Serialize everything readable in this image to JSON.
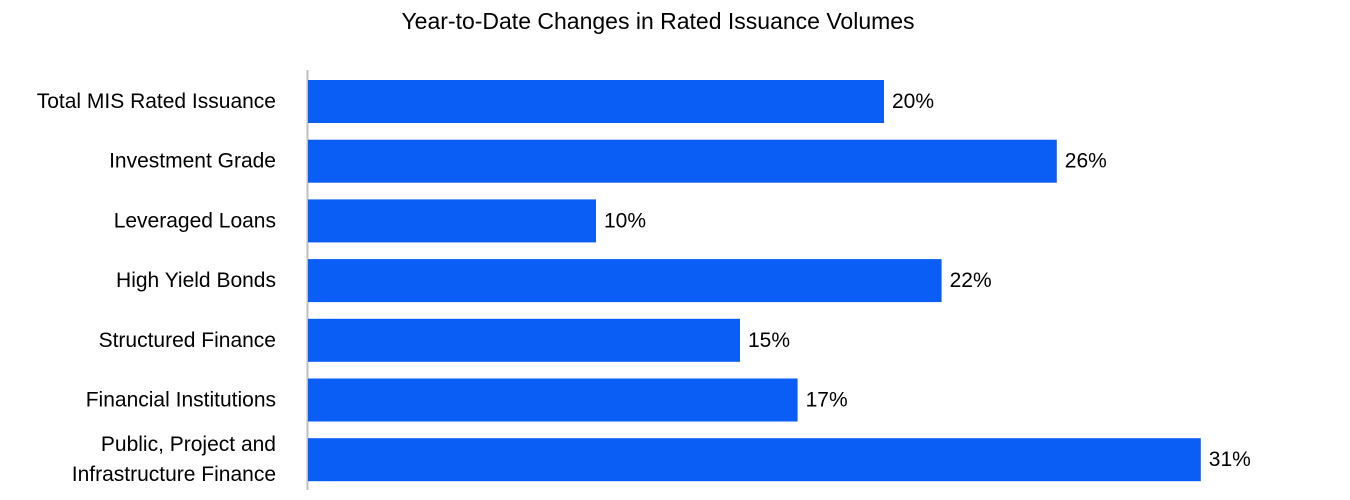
{
  "chart_data": {
    "type": "bar",
    "orientation": "horizontal",
    "title": "Year-to-Date Changes in Rated Issuance Volumes",
    "categories": [
      [
        "Total MIS Rated Issuance"
      ],
      [
        "Investment Grade"
      ],
      [
        "Leveraged Loans"
      ],
      [
        "High Yield Bonds"
      ],
      [
        "Structured Finance"
      ],
      [
        "Financial Institutions"
      ],
      [
        "Public, Project and",
        "Infrastructure Finance"
      ]
    ],
    "values": [
      20,
      26,
      10,
      22,
      15,
      17,
      31
    ],
    "data_labels": [
      "20%",
      "26%",
      "10%",
      "22%",
      "15%",
      "17%",
      "31%"
    ],
    "unit": "%",
    "xlim": [
      0,
      35
    ],
    "grid": false,
    "legend": "none",
    "colors": {
      "bar": "#0A5EF5",
      "axis": "#BFBFBF",
      "text": "#000000"
    }
  }
}
